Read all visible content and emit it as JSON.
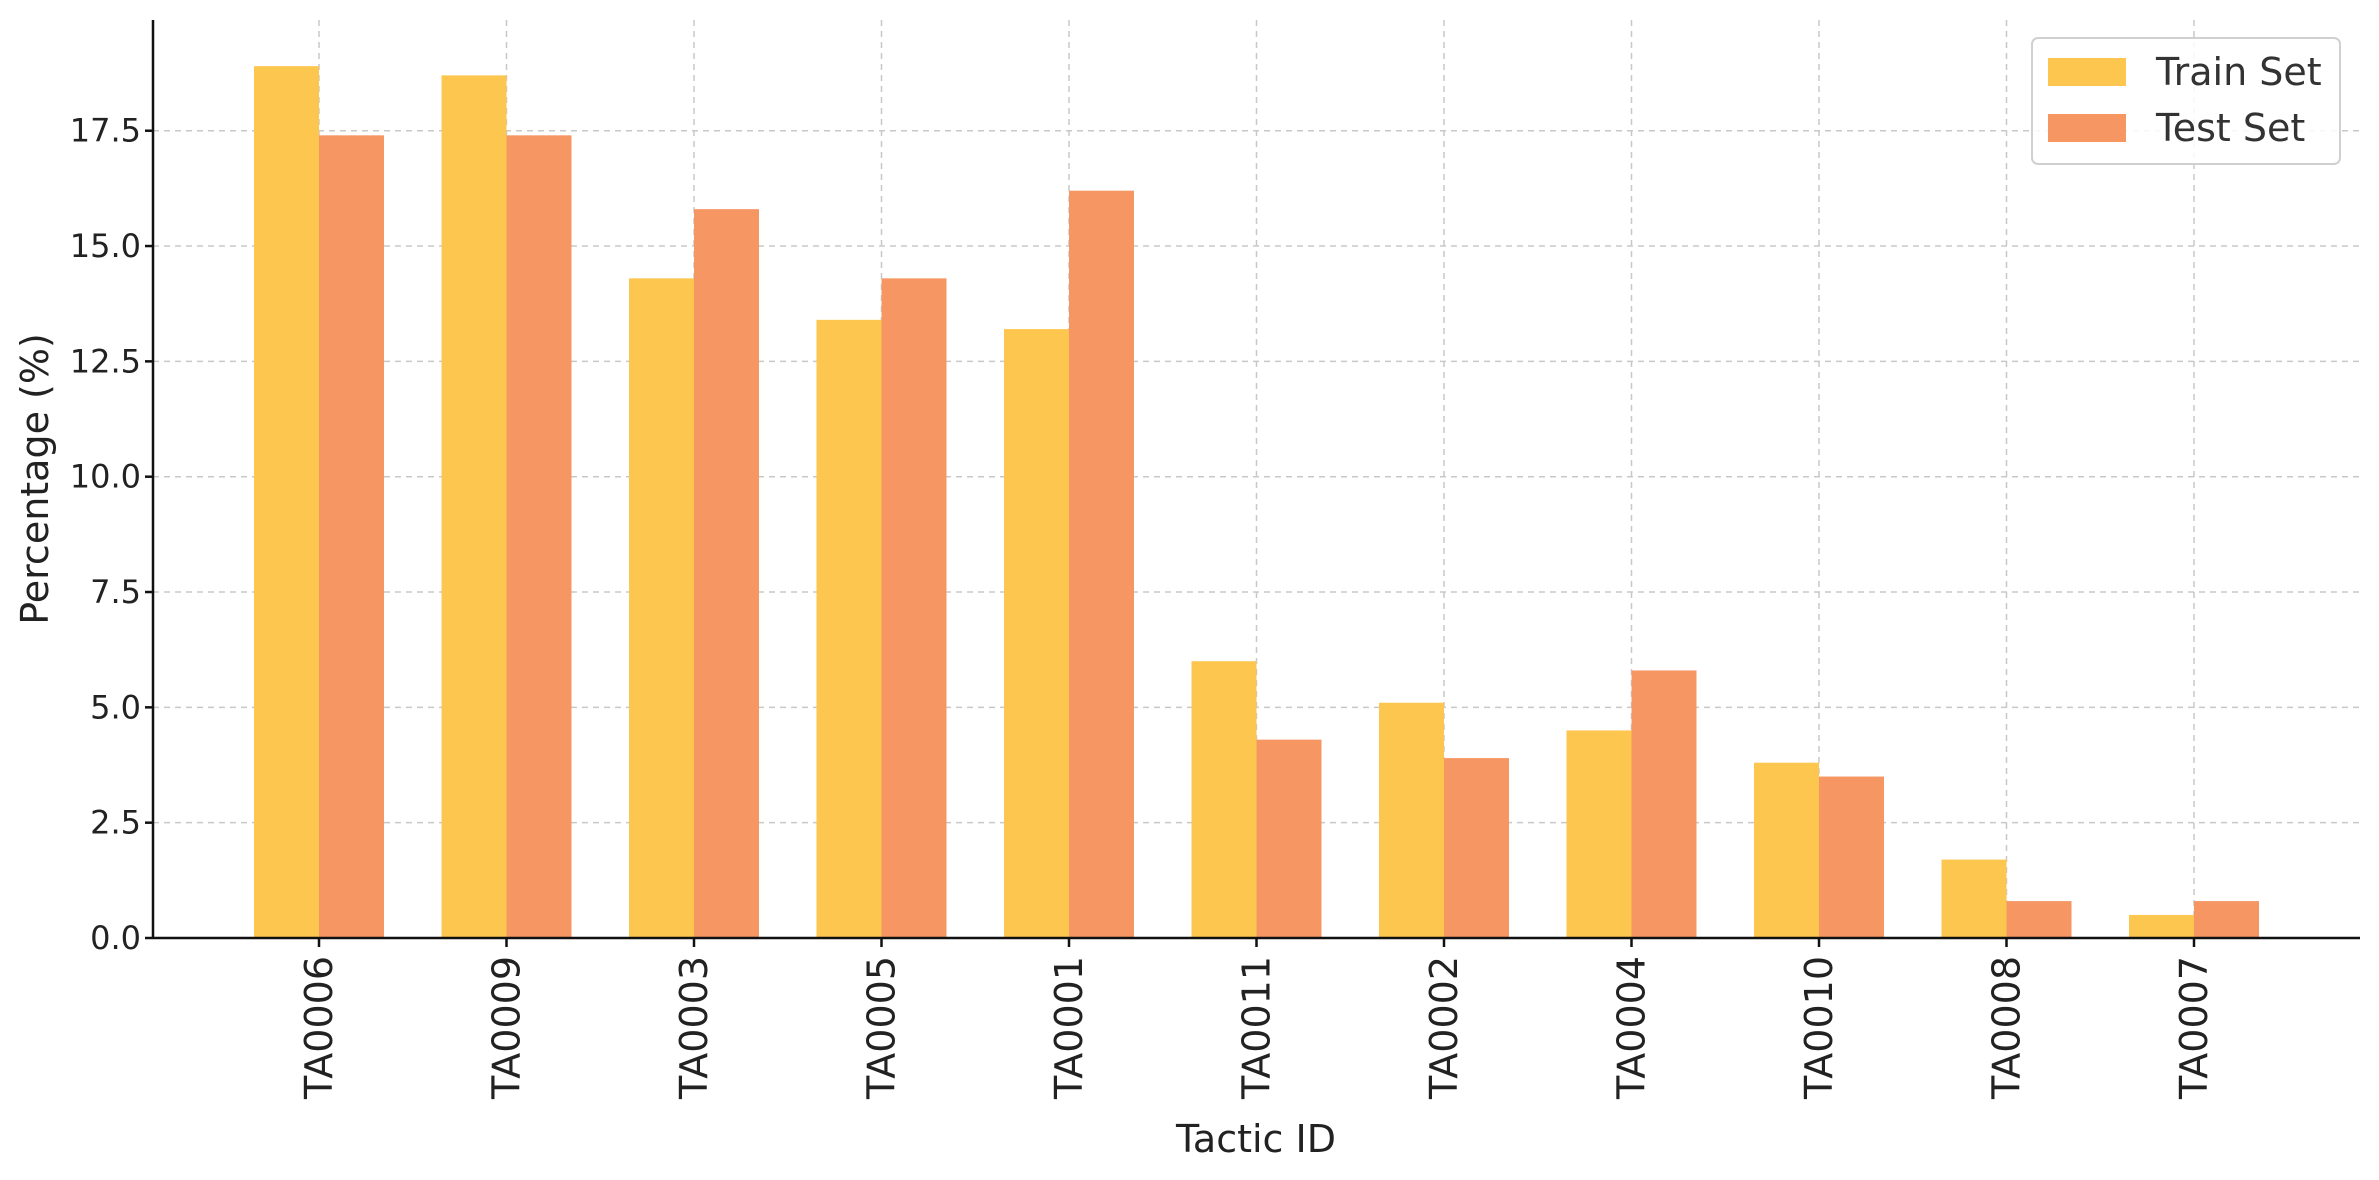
{
  "chart_data": {
    "type": "bar",
    "title": "",
    "xlabel": "Tactic ID",
    "ylabel": "Percentage (%)",
    "categories": [
      "TA0006",
      "TA0009",
      "TA0003",
      "TA0005",
      "TA0001",
      "TA0011",
      "TA0002",
      "TA0004",
      "TA0010",
      "TA0008",
      "TA0007"
    ],
    "series": [
      {
        "name": "Train Set",
        "color": "#FDC64F",
        "values": [
          18.9,
          18.7,
          14.3,
          13.4,
          13.2,
          6.0,
          5.1,
          4.5,
          3.8,
          1.7,
          0.5
        ]
      },
      {
        "name": "Test Set",
        "color": "#F69763",
        "values": [
          17.4,
          17.4,
          15.8,
          14.3,
          16.2,
          4.3,
          3.9,
          5.8,
          3.5,
          0.8,
          0.8
        ]
      }
    ],
    "ylim": [
      0,
      19.9
    ],
    "yticks": [
      "0.0",
      "2.5",
      "5.0",
      "7.5",
      "10.0",
      "12.5",
      "15.0",
      "17.5"
    ],
    "grid": true,
    "legend": "top-right"
  }
}
